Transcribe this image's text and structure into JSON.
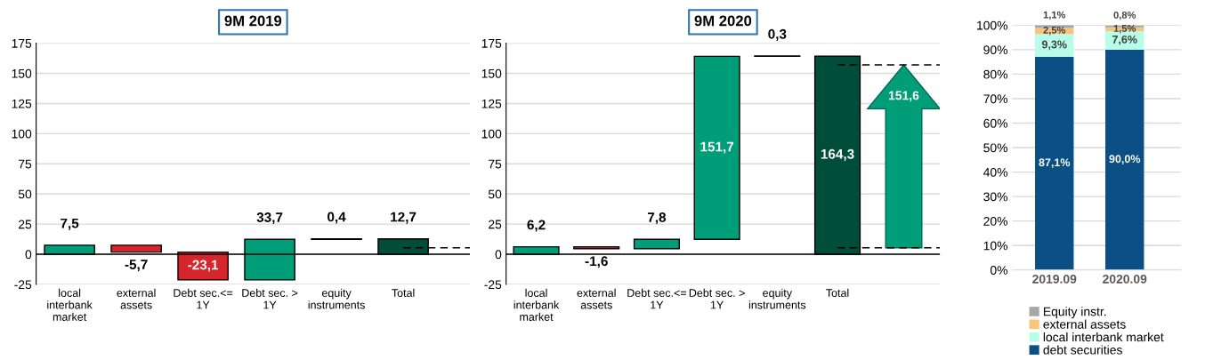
{
  "chart_data": [
    {
      "type": "bar",
      "title": "9M 2019",
      "categories": [
        "local\ninterbank\nmarket",
        "external\nassets",
        "Debt sec.<=\n1Y",
        "Debt sec. >\n1Y",
        "equity\ninstruments",
        "Total"
      ],
      "values": [
        7.5,
        -5.7,
        -23.1,
        33.7,
        0.4,
        12.7
      ],
      "base": [
        0,
        7.5,
        1.8,
        -21.3,
        12.4,
        0
      ],
      "colors": [
        "#009e78",
        "#d7262b",
        "#d7262b",
        "#009e78",
        "#000000",
        "#004d3a"
      ],
      "value_labels": [
        "7,5",
        "-5,7",
        "-23,1",
        "33,7",
        "0,4",
        "12,7"
      ],
      "ylim": [
        -25,
        175
      ],
      "yticks": [
        -25,
        0,
        25,
        50,
        75,
        100,
        125,
        150,
        175
      ],
      "grid": "y",
      "ref_lines": [
        {
          "axis": "y",
          "value": 5.4,
          "color": "#000000",
          "line_style": "dashed"
        }
      ]
    },
    {
      "type": "bar",
      "title": "9M 2020",
      "categories": [
        "local\ninterbank\nmarket",
        "external\nassets",
        "Debt sec.<=\n1Y",
        "Debt sec. >\n1Y",
        "equity\ninstruments",
        "Total"
      ],
      "values": [
        6.2,
        -1.6,
        7.8,
        151.7,
        0.3,
        164.3
      ],
      "base": [
        0,
        6.2,
        4.6,
        12.4,
        164.1,
        0
      ],
      "colors": [
        "#009e78",
        "#d7262b",
        "#009e78",
        "#009e78",
        "#000000",
        "#004d3a"
      ],
      "value_labels": [
        "6,2",
        "-1,6",
        "7,8",
        "151,7",
        "0,3",
        "164,3"
      ],
      "ylim": [
        -25,
        175
      ],
      "yticks": [
        -25,
        0,
        25,
        50,
        75,
        100,
        125,
        150,
        175
      ],
      "grid": "y",
      "ref_lines": [
        {
          "axis": "y",
          "value": 5.4,
          "color": "#000000",
          "line_style": "dashed"
        },
        {
          "axis": "y",
          "value": 157,
          "color": "#000000",
          "line_style": "dashed"
        }
      ],
      "annotations": [
        "151,6"
      ]
    },
    {
      "type": "bar",
      "stacked": true,
      "categories": [
        "2019.09",
        "2020.09"
      ],
      "series": [
        {
          "name": "debt securities",
          "color": "#0b4f85",
          "values": [
            87.1,
            90.0
          ],
          "value_labels": [
            "87,1%",
            "90,0%"
          ]
        },
        {
          "name": "local interbank market",
          "color": "#b8fde8",
          "values": [
            9.3,
            7.6
          ],
          "value_labels": [
            "9,3%",
            "7,6%"
          ]
        },
        {
          "name": "external assets",
          "color": "#fac47a",
          "values": [
            2.5,
            1.5
          ],
          "value_labels": [
            "2,5%",
            "1,5%"
          ]
        },
        {
          "name": "Equity instr.",
          "color": "#a6a6a6",
          "values": [
            1.1,
            0.8
          ],
          "value_labels": [
            "1,1%",
            "0,8%"
          ]
        }
      ],
      "ylim": [
        0,
        100
      ],
      "yticks": [
        {
          "value": 0,
          "label": "0%"
        },
        {
          "value": 10,
          "label": "10%"
        },
        {
          "value": 20,
          "label": "20%"
        },
        {
          "value": 30,
          "label": "30%"
        },
        {
          "value": 40,
          "label": "40%"
        },
        {
          "value": 50,
          "label": "50%"
        },
        {
          "value": 60,
          "label": "60%"
        },
        {
          "value": 70,
          "label": "70%"
        },
        {
          "value": 80,
          "label": "80%"
        },
        {
          "value": 90,
          "label": "90%"
        },
        {
          "value": 100,
          "label": "100%"
        }
      ],
      "grid": "y",
      "legend": "bottom"
    }
  ]
}
